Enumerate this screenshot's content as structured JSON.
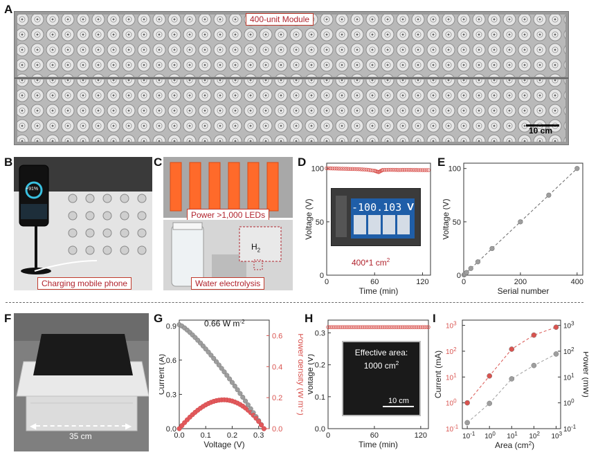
{
  "panels": {
    "A": {
      "letter": "A",
      "label": "400-unit Module",
      "scale_bar": "10 cm"
    },
    "B": {
      "letter": "B",
      "label": "Charging mobile phone",
      "phone_text": "+91%"
    },
    "C": {
      "letter": "C",
      "label_top": "Power >1,000 LEDs",
      "label_bottom": "Water electrolysis",
      "h2": "H",
      "h2_sub": "2"
    },
    "D": {
      "letter": "D"
    },
    "E": {
      "letter": "E"
    },
    "F": {
      "letter": "F",
      "width_label": "35 cm"
    },
    "G": {
      "letter": "G"
    },
    "H": {
      "letter": "H"
    },
    "I": {
      "letter": "I"
    }
  },
  "colors": {
    "red": "#d9534f",
    "gray": "#9e9e9e",
    "caption_red": "#b0222c",
    "black_panel": "#1a1a1a"
  },
  "chart_data": [
    {
      "id": "D",
      "type": "line",
      "xlabel": "Time (min)",
      "ylabel": "Voltage (V)",
      "xlim": [
        0,
        130
      ],
      "ylim": [
        0,
        105
      ],
      "xticks": [
        0,
        60,
        120
      ],
      "yticks": [
        0,
        50,
        100
      ],
      "series": [
        {
          "color": "#d9534f",
          "marker": "open-circle",
          "x": [
            0,
            10,
            20,
            30,
            40,
            50,
            60,
            65,
            70,
            80,
            90,
            100,
            110,
            120,
            130
          ],
          "y": [
            100.2,
            100.0,
            99.8,
            99.6,
            99.4,
            98.9,
            97.9,
            96.6,
            98.6,
            98.8,
            98.6,
            98.7,
            98.6,
            98.5,
            98.5
          ]
        }
      ],
      "inset": {
        "reading": "-100.103",
        "unit": "V"
      },
      "annotation": "400*1 cm",
      "annotation_sup": "2"
    },
    {
      "id": "E",
      "type": "scatter",
      "xlabel": "Serial number",
      "ylabel": "Voltage (V)",
      "xlim": [
        0,
        420
      ],
      "ylim": [
        0,
        105
      ],
      "xticks": [
        0,
        200,
        400
      ],
      "yticks": [
        0,
        50,
        100
      ],
      "series": [
        {
          "color": "#9e9e9e",
          "x": [
            1,
            2,
            5,
            10,
            25,
            50,
            100,
            200,
            300,
            400
          ],
          "y": [
            0.25,
            0.5,
            1.3,
            2.5,
            6.3,
            12.5,
            25,
            50,
            75,
            100
          ]
        }
      ]
    },
    {
      "id": "G",
      "type": "line",
      "xlabel": "Voltage (V)",
      "ylabel": "Current (A)",
      "y2label": "Power density (W m",
      "y2label_sup": "-2",
      "y2label_end": ")",
      "xlim": [
        0,
        0.34
      ],
      "ylim": [
        0,
        0.95
      ],
      "y2lim": [
        0,
        0.7
      ],
      "xticks": [
        0.0,
        0.1,
        0.2,
        0.3
      ],
      "xticklabels": [
        "0.0",
        "0.1",
        "0.2",
        "0.3"
      ],
      "yticks": [
        0.0,
        0.3,
        0.6,
        0.9
      ],
      "yticklabels": [
        "0.0",
        "0.3",
        "0.6",
        "0.9"
      ],
      "y2ticks": [
        0.0,
        0.2,
        0.4,
        0.6
      ],
      "y2ticklabels": [
        "0.0",
        "0.2",
        "0.4",
        "0.6"
      ],
      "annotation": "0.66 W m",
      "annotation_sup": "-2",
      "voc": 0.32,
      "isc": 0.91,
      "series": [
        {
          "name": "current",
          "color": "#9e9e9e"
        },
        {
          "name": "power",
          "color": "#d9534f"
        }
      ]
    },
    {
      "id": "H",
      "type": "line",
      "xlabel": "Time (min)",
      "ylabel": "Voltage (V)",
      "xlim": [
        0,
        130
      ],
      "ylim": [
        0,
        0.34
      ],
      "xticks": [
        0,
        60,
        120
      ],
      "yticks": [
        0.0,
        0.1,
        0.2,
        0.3
      ],
      "yticklabels": [
        "0.0",
        "0.1",
        "0.2",
        "0.3"
      ],
      "series": [
        {
          "color": "#d9534f",
          "marker": "open-circle",
          "x": [
            0,
            130
          ],
          "y": [
            0.318,
            0.318
          ]
        }
      ],
      "inset": {
        "line1": "Effective area:",
        "line2": "1000 cm",
        "line2_sup": "2",
        "scale_bar": "10 cm"
      }
    },
    {
      "id": "I",
      "type": "scatter",
      "xlabel": "Area (cm",
      "xlabel_sup": "2",
      "xlabel_end": ")",
      "ylabel": "Current (mA)",
      "y2label": "Power (mW)",
      "xscale": "log",
      "yscale": "log",
      "y2scale": "log",
      "xticklabels": [
        "10",
        "10",
        "10",
        "10",
        "10"
      ],
      "xticksups": [
        "-1",
        "0",
        "1",
        "2",
        "3"
      ],
      "yticklabels": [
        "10",
        "10",
        "10",
        "10",
        "10"
      ],
      "yticksups": [
        "-1",
        "0",
        "1",
        "2",
        "3"
      ],
      "y2ticklabels": [
        "10",
        "10",
        "10",
        "10",
        "10"
      ],
      "y2ticksups": [
        "-1",
        "0",
        "1",
        "2",
        "3"
      ],
      "series": [
        {
          "name": "current",
          "color": "#d9534f",
          "x": [
            0.1,
            1,
            10,
            100,
            1000
          ],
          "y": [
            1.0,
            11,
            120,
            420,
            850
          ]
        },
        {
          "name": "power",
          "color": "#9e9e9e",
          "x": [
            0.1,
            1,
            10,
            100,
            1000
          ],
          "y": [
            0.17,
            0.95,
            8.5,
            28,
            78
          ]
        }
      ]
    }
  ]
}
